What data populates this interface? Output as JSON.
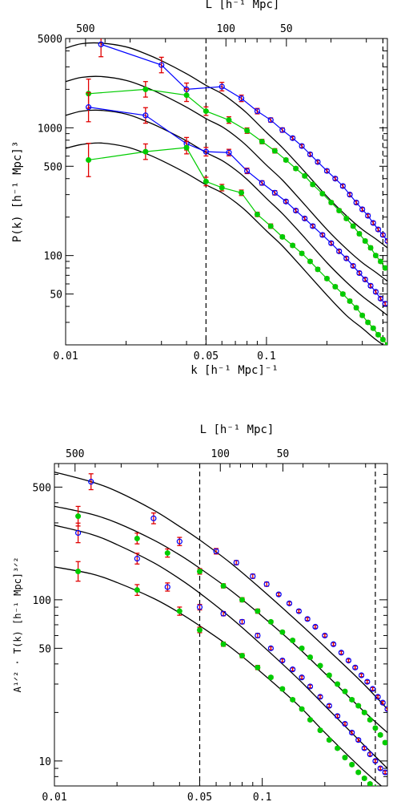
{
  "chart_data": [
    {
      "type": "line",
      "xlabel": "k [h⁻¹ Mpc]⁻¹",
      "ylabel": "P(k) [h⁻¹ Mpc]³",
      "top_label": "L  [h⁻¹ Mpc]",
      "xscale": "log",
      "yscale": "log",
      "xlim": [
        0.01,
        0.4
      ],
      "ylim": [
        20,
        5000
      ],
      "x_ticks": [
        {
          "v": 0.01,
          "label": "0.01"
        },
        {
          "v": 0.05,
          "label": "0.05"
        },
        {
          "v": 0.1,
          "label": "0.1"
        }
      ],
      "y_ticks": [
        {
          "v": 50,
          "label": "50"
        },
        {
          "v": 100,
          "label": "100"
        },
        {
          "v": 500,
          "label": "500"
        },
        {
          "v": 1000,
          "label": "1000"
        },
        {
          "v": 5000,
          "label": "5000"
        }
      ],
      "top_ticks": [
        {
          "v": 500,
          "label": "500"
        },
        {
          "v": 100,
          "label": "100"
        },
        {
          "v": 50,
          "label": "50"
        }
      ],
      "vlines": [
        0.05,
        0.38
      ],
      "model_curves": [
        {
          "x": [
            0.01,
            0.012,
            0.015,
            0.02,
            0.025,
            0.03,
            0.04,
            0.05,
            0.06,
            0.07,
            0.08,
            0.1,
            0.12,
            0.15,
            0.2,
            0.25,
            0.3,
            0.35,
            0.4
          ],
          "y": [
            4200,
            4550,
            4600,
            4300,
            3800,
            3350,
            2650,
            2150,
            1850,
            1550,
            1300,
            920,
            700,
            480,
            290,
            205,
            160,
            135,
            115
          ]
        },
        {
          "x": [
            0.01,
            0.012,
            0.015,
            0.02,
            0.025,
            0.03,
            0.04,
            0.05,
            0.06,
            0.07,
            0.08,
            0.1,
            0.12,
            0.15,
            0.2,
            0.25,
            0.3,
            0.35,
            0.4
          ],
          "y": [
            2300,
            2480,
            2520,
            2350,
            2080,
            1830,
            1450,
            1180,
            1020,
            860,
            720,
            510,
            390,
            265,
            160,
            113,
            88,
            74,
            63
          ]
        },
        {
          "x": [
            0.01,
            0.012,
            0.015,
            0.02,
            0.025,
            0.03,
            0.04,
            0.05,
            0.06,
            0.07,
            0.08,
            0.1,
            0.12,
            0.15,
            0.2,
            0.25,
            0.3,
            0.35,
            0.4
          ],
          "y": [
            1250,
            1350,
            1370,
            1280,
            1130,
            995,
            790,
            640,
            555,
            470,
            395,
            280,
            213,
            146,
            88,
            62,
            48,
            40,
            34
          ]
        },
        {
          "x": [
            0.01,
            0.012,
            0.015,
            0.02,
            0.025,
            0.03,
            0.04,
            0.05,
            0.06,
            0.07,
            0.08,
            0.1,
            0.12,
            0.15,
            0.2,
            0.25,
            0.3,
            0.35,
            0.4
          ],
          "y": [
            690,
            740,
            760,
            710,
            630,
            555,
            440,
            358,
            310,
            262,
            220,
            156,
            119,
            81,
            49,
            34,
            27,
            22,
            19
          ]
        }
      ],
      "series": [
        {
          "marker": "open-circle",
          "color": "#0000ff",
          "x": [
            0.015,
            0.03,
            0.04,
            0.06,
            0.075,
            0.09,
            0.105,
            0.12,
            0.135,
            0.15,
            0.165,
            0.18,
            0.2,
            0.22,
            0.24,
            0.26,
            0.28,
            0.3,
            0.32,
            0.34,
            0.36,
            0.38,
            0.4
          ],
          "y": [
            4500,
            3100,
            2000,
            2100,
            1700,
            1350,
            1150,
            960,
            830,
            720,
            620,
            540,
            460,
            400,
            350,
            300,
            260,
            230,
            205,
            180,
            160,
            145,
            130
          ],
          "err": [
            0.25,
            0.15,
            0.12,
            0.08,
            0.06,
            0.05,
            0.04,
            0.04,
            0.03,
            0.03,
            0.03,
            0.03,
            0.03,
            0.03,
            0.03,
            0.03,
            0.03,
            0.03,
            0.03,
            0.03,
            0.03,
            0.03,
            0.03
          ]
        },
        {
          "marker": "filled-circle",
          "color": "#00cc00",
          "x": [
            0.013,
            0.025,
            0.04,
            0.05,
            0.065,
            0.08,
            0.095,
            0.11,
            0.125,
            0.14,
            0.155,
            0.17,
            0.19,
            0.21,
            0.23,
            0.25,
            0.27,
            0.29,
            0.31,
            0.33,
            0.35,
            0.37,
            0.39
          ],
          "y": [
            1850,
            2000,
            1800,
            1350,
            1150,
            950,
            780,
            660,
            560,
            480,
            420,
            360,
            305,
            260,
            225,
            195,
            170,
            148,
            130,
            115,
            100,
            90,
            80
          ],
          "err": [
            0.3,
            0.15,
            0.12,
            0.08,
            0.06,
            0.05,
            0.04,
            0.04,
            0.03,
            0.03,
            0.03,
            0.03,
            0.03,
            0.03,
            0.03,
            0.03,
            0.03,
            0.03,
            0.03,
            0.03,
            0.03,
            0.03,
            0.03
          ]
        },
        {
          "marker": "open-circle",
          "color": "#0000ff",
          "x": [
            0.013,
            0.025,
            0.04,
            0.05,
            0.065,
            0.08,
            0.095,
            0.11,
            0.125,
            0.14,
            0.155,
            0.17,
            0.19,
            0.21,
            0.23,
            0.25,
            0.27,
            0.29,
            0.31,
            0.33,
            0.35,
            0.37,
            0.39
          ],
          "y": [
            1450,
            1250,
            750,
            650,
            640,
            460,
            370,
            310,
            265,
            225,
            195,
            170,
            145,
            125,
            108,
            95,
            83,
            73,
            65,
            58,
            52,
            46,
            42
          ],
          "err": [
            0.3,
            0.15,
            0.12,
            0.08,
            0.06,
            0.05,
            0.04,
            0.04,
            0.03,
            0.03,
            0.03,
            0.03,
            0.03,
            0.03,
            0.03,
            0.03,
            0.03,
            0.03,
            0.03,
            0.03,
            0.03,
            0.03,
            0.03
          ]
        },
        {
          "marker": "filled-circle",
          "color": "#00cc00",
          "x": [
            0.013,
            0.025,
            0.04,
            0.05,
            0.06,
            0.075,
            0.09,
            0.105,
            0.12,
            0.135,
            0.15,
            0.165,
            0.18,
            0.2,
            0.22,
            0.24,
            0.26,
            0.28,
            0.3,
            0.32,
            0.34,
            0.36,
            0.38,
            0.4
          ],
          "y": [
            560,
            650,
            700,
            380,
            340,
            310,
            210,
            170,
            140,
            120,
            104,
            90,
            78,
            66,
            57,
            50,
            44,
            39,
            34,
            30,
            27,
            24,
            22,
            20
          ],
          "err": [
            0.35,
            0.15,
            0.12,
            0.08,
            0.06,
            0.05,
            0.04,
            0.04,
            0.03,
            0.03,
            0.03,
            0.03,
            0.03,
            0.03,
            0.03,
            0.03,
            0.03,
            0.03,
            0.03,
            0.03,
            0.03,
            0.03,
            0.03,
            0.03
          ]
        }
      ]
    },
    {
      "type": "scatter",
      "xlabel": "k [h⁻¹ Mpc]⁻¹",
      "ylabel": "A¹ᐟ² · T(k) [h⁻¹ Mpc]³ᐟ²",
      "top_label": "L  [h⁻¹ Mpc]",
      "xscale": "log",
      "yscale": "log",
      "xlim": [
        0.01,
        0.4
      ],
      "ylim": [
        7,
        700
      ],
      "x_ticks": [
        {
          "v": 0.01,
          "label": "0.01"
        },
        {
          "v": 0.05,
          "label": "0.05"
        },
        {
          "v": 0.1,
          "label": "0.1"
        }
      ],
      "y_ticks": [
        {
          "v": 10,
          "label": "10"
        },
        {
          "v": 50,
          "label": "50"
        },
        {
          "v": 100,
          "label": "100"
        },
        {
          "v": 500,
          "label": "500"
        }
      ],
      "top_ticks": [
        {
          "v": 500,
          "label": "500"
        },
        {
          "v": 100,
          "label": "100"
        },
        {
          "v": 50,
          "label": "50"
        }
      ],
      "vlines": [
        0.05,
        0.35
      ],
      "model_curves": [
        {
          "x": [
            0.01,
            0.015,
            0.02,
            0.03,
            0.04,
            0.05,
            0.07,
            0.1,
            0.15,
            0.2,
            0.3,
            0.4
          ],
          "y": [
            620,
            540,
            470,
            360,
            285,
            235,
            170,
            115,
            72,
            51,
            31,
            21
          ]
        },
        {
          "x": [
            0.01,
            0.015,
            0.02,
            0.03,
            0.04,
            0.05,
            0.07,
            0.1,
            0.15,
            0.2,
            0.3,
            0.4
          ],
          "y": [
            380,
            340,
            300,
            235,
            190,
            157,
            115,
            79,
            50,
            35,
            21,
            15
          ]
        },
        {
          "x": [
            0.01,
            0.015,
            0.02,
            0.03,
            0.04,
            0.05,
            0.07,
            0.1,
            0.15,
            0.2,
            0.3,
            0.4
          ],
          "y": [
            290,
            255,
            220,
            170,
            135,
            110,
            78,
            52,
            32,
            22,
            13,
            9
          ]
        },
        {
          "x": [
            0.01,
            0.015,
            0.02,
            0.03,
            0.04,
            0.05,
            0.07,
            0.1,
            0.15,
            0.2,
            0.3,
            0.4
          ],
          "y": [
            160,
            145,
            128,
            102,
            83,
            69,
            51,
            35,
            22,
            15,
            9,
            6.5
          ]
        }
      ],
      "series": [
        {
          "marker": "open-circle",
          "color": "#0000ff",
          "x": [
            0.015,
            0.03,
            0.04,
            0.06,
            0.075,
            0.09,
            0.105,
            0.12,
            0.135,
            0.15,
            0.165,
            0.18,
            0.2,
            0.22,
            0.24,
            0.26,
            0.28,
            0.3,
            0.32,
            0.34,
            0.36,
            0.38,
            0.4
          ],
          "y": [
            540,
            320,
            230,
            200,
            170,
            140,
            125,
            108,
            95,
            85,
            76,
            68,
            60,
            53,
            47,
            42,
            38,
            34,
            31,
            28,
            25,
            23,
            21
          ],
          "err": [
            0.12,
            0.08,
            0.06,
            0.04,
            0.03,
            0.03,
            0.03,
            0.02,
            0.02,
            0.02,
            0.02,
            0.02,
            0.02,
            0.02,
            0.02,
            0.02,
            0.02,
            0.02,
            0.02,
            0.02,
            0.02,
            0.02,
            0.02
          ]
        },
        {
          "marker": "filled-circle",
          "color": "#00cc00",
          "x": [
            0.013,
            0.025,
            0.035,
            0.05,
            0.065,
            0.08,
            0.095,
            0.11,
            0.125,
            0.14,
            0.155,
            0.17,
            0.19,
            0.21,
            0.23,
            0.25,
            0.27,
            0.29,
            0.31,
            0.33,
            0.35,
            0.37,
            0.39
          ],
          "y": [
            330,
            240,
            195,
            150,
            122,
            100,
            85,
            73,
            63,
            56,
            50,
            44,
            39,
            34,
            30,
            27,
            24,
            22,
            20,
            18,
            16,
            14.5,
            13
          ],
          "err": [
            0.15,
            0.08,
            0.06,
            0.04,
            0.03,
            0.03,
            0.03,
            0.02,
            0.02,
            0.02,
            0.02,
            0.02,
            0.02,
            0.02,
            0.02,
            0.02,
            0.02,
            0.02,
            0.02,
            0.02,
            0.02,
            0.02,
            0.02
          ]
        },
        {
          "marker": "open-circle",
          "color": "#0000ff",
          "x": [
            0.013,
            0.025,
            0.035,
            0.05,
            0.065,
            0.08,
            0.095,
            0.11,
            0.125,
            0.14,
            0.155,
            0.17,
            0.19,
            0.21,
            0.23,
            0.25,
            0.27,
            0.29,
            0.31,
            0.33,
            0.35,
            0.37,
            0.39
          ],
          "y": [
            260,
            180,
            120,
            90,
            82,
            73,
            60,
            50,
            42,
            37,
            33,
            29,
            25,
            22,
            19,
            17,
            15,
            13.5,
            12,
            11,
            10,
            9,
            8.5
          ],
          "err": [
            0.15,
            0.08,
            0.06,
            0.04,
            0.03,
            0.03,
            0.03,
            0.02,
            0.02,
            0.02,
            0.02,
            0.02,
            0.02,
            0.02,
            0.02,
            0.02,
            0.02,
            0.02,
            0.02,
            0.02,
            0.02,
            0.02,
            0.02
          ]
        },
        {
          "marker": "filled-circle",
          "color": "#00cc00",
          "x": [
            0.013,
            0.025,
            0.04,
            0.05,
            0.065,
            0.08,
            0.095,
            0.11,
            0.125,
            0.14,
            0.155,
            0.17,
            0.19,
            0.21,
            0.23,
            0.25,
            0.27,
            0.29,
            0.31,
            0.33,
            0.35,
            0.37,
            0.39
          ],
          "y": [
            150,
            115,
            85,
            65,
            53,
            45,
            38,
            33,
            28,
            24,
            21,
            18,
            15.5,
            13.5,
            12,
            10.5,
            9.5,
            8.5,
            7.8,
            7.2,
            6.8,
            6.4,
            6.0
          ],
          "err": [
            0.15,
            0.08,
            0.06,
            0.04,
            0.03,
            0.03,
            0.03,
            0.02,
            0.02,
            0.02,
            0.02,
            0.02,
            0.02,
            0.02,
            0.02,
            0.02,
            0.02,
            0.02,
            0.02,
            0.02,
            0.02,
            0.02,
            0.02
          ]
        }
      ]
    }
  ]
}
